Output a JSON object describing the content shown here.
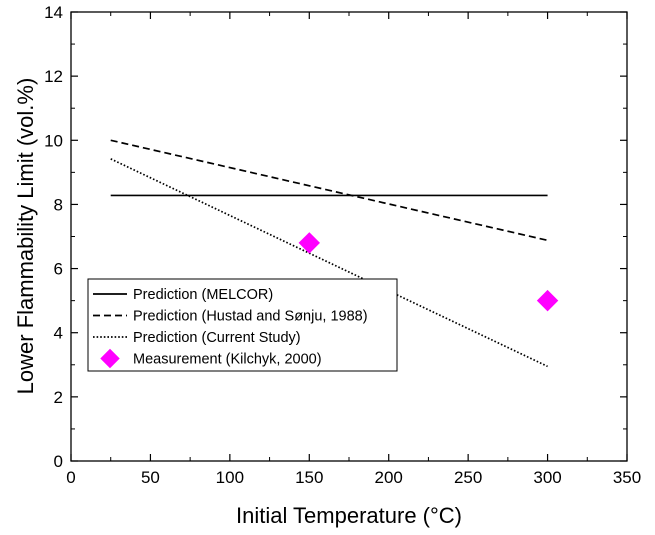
{
  "chart_data": {
    "type": "line",
    "xlabel": "Initial Temperature (°C)",
    "ylabel": "Lower Flammability Limit (vol.%)",
    "xlim": [
      0,
      350
    ],
    "ylim": [
      0,
      14
    ],
    "xticks": [
      0,
      50,
      100,
      150,
      200,
      250,
      300,
      350
    ],
    "yticks": [
      0,
      2,
      4,
      6,
      8,
      10,
      12,
      14
    ],
    "grid": false,
    "legend_position": "lower-left",
    "series": [
      {
        "name": "Prediction (MELCOR)",
        "kind": "line",
        "line_style": "solid",
        "color": "#000000",
        "x": [
          25,
          300
        ],
        "y": [
          8.28,
          8.28
        ]
      },
      {
        "name": "Prediction (Hustad and Sønju, 1988)",
        "kind": "line",
        "line_style": "dashed",
        "color": "#000000",
        "x": [
          25,
          300
        ],
        "y": [
          10.0,
          6.88
        ]
      },
      {
        "name": "Prediction (Current Study)",
        "kind": "line",
        "line_style": "dotted",
        "color": "#000000",
        "x": [
          25,
          300
        ],
        "y": [
          9.42,
          2.95
        ]
      },
      {
        "name": "Measurement (Kilchyk, 2000)",
        "kind": "scatter",
        "marker": "diamond",
        "color": "#ff00ff",
        "x": [
          150,
          300
        ],
        "y": [
          6.8,
          5.0
        ]
      }
    ]
  }
}
